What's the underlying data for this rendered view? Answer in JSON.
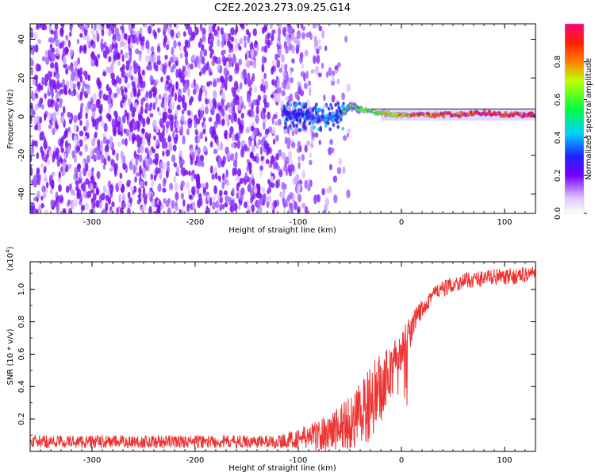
{
  "figure_title": "C2E2.2023.273.09.25.G14",
  "chart_data": [
    {
      "type": "heatmap",
      "title": "C2E2.2023.273.09.25.G14",
      "xlabel": "Height of straight line (km)",
      "ylabel": "Frequency (Hz)",
      "xlim": [
        -360,
        130
      ],
      "ylim": [
        -50,
        48
      ],
      "xticks": [
        -300,
        -200,
        -100,
        0,
        100
      ],
      "yticks": [
        -40,
        -20,
        0,
        20,
        40
      ],
      "colorbar": {
        "label": "Normalized spectral amplitude",
        "range": [
          0.0,
          1.0
        ],
        "ticks": [
          "0.0",
          "0.2",
          "0.4",
          "0.6",
          "0.8"
        ],
        "tick_values": [
          0.0,
          0.2,
          0.4,
          0.6,
          0.8
        ]
      },
      "signal_trace": {
        "description": "narrow carrier line near 0 Hz emerging above about -115 km",
        "x": [
          -115,
          -100,
          -90,
          -80,
          -70,
          -60,
          -50,
          -40,
          -30,
          -20,
          -10,
          0,
          20,
          40,
          60,
          80,
          100,
          130
        ],
        "frequency": [
          2,
          1,
          0,
          -1,
          -1,
          1,
          5,
          4,
          3,
          2,
          1,
          1,
          1,
          1,
          1,
          2,
          1,
          1
        ],
        "amplitude": [
          0.25,
          0.3,
          0.35,
          0.35,
          0.4,
          0.5,
          0.6,
          0.55,
          0.6,
          0.7,
          0.75,
          0.8,
          0.85,
          0.85,
          0.9,
          0.9,
          0.9,
          0.9
        ]
      },
      "noise_region_x": [
        -360,
        -60
      ]
    },
    {
      "type": "line",
      "xlabel": "Height of straight line (km)",
      "ylabel": "SNR (10 * v/v)",
      "multiplier_label": "(x10",
      "multiplier_exponent": "4",
      "multiplier_suffix": ")",
      "xlim": [
        -360,
        130
      ],
      "ylim": [
        0,
        1.17
      ],
      "xticks": [
        -300,
        -200,
        -100,
        0,
        100
      ],
      "yticks": [
        "0.2",
        "0.4",
        "0.6",
        "0.8",
        "1.0"
      ],
      "ytick_values": [
        0.2,
        0.4,
        0.6,
        0.8,
        1.0
      ],
      "series": [
        {
          "name": "SNR",
          "color": "#ee3333",
          "x": [
            -360,
            -340,
            -320,
            -300,
            -280,
            -260,
            -240,
            -220,
            -200,
            -180,
            -160,
            -140,
            -120,
            -110,
            -100,
            -90,
            -80,
            -70,
            -60,
            -50,
            -40,
            -35,
            -30,
            -25,
            -20,
            -15,
            -10,
            -5,
            0,
            5,
            10,
            15,
            20,
            25,
            30,
            40,
            50,
            60,
            70,
            80,
            90,
            100,
            110,
            120,
            130
          ],
          "values": [
            0.06,
            0.06,
            0.06,
            0.06,
            0.06,
            0.06,
            0.06,
            0.06,
            0.06,
            0.06,
            0.06,
            0.06,
            0.06,
            0.07,
            0.08,
            0.09,
            0.1,
            0.12,
            0.15,
            0.18,
            0.22,
            0.25,
            0.3,
            0.35,
            0.38,
            0.45,
            0.5,
            0.55,
            0.62,
            0.68,
            0.75,
            0.82,
            0.88,
            0.93,
            0.97,
            1.0,
            1.03,
            1.05,
            1.06,
            1.07,
            1.08,
            1.07,
            1.08,
            1.09,
            1.1
          ],
          "noise_amplitude": [
            0.04,
            0.04,
            0.04,
            0.04,
            0.04,
            0.04,
            0.04,
            0.04,
            0.04,
            0.04,
            0.04,
            0.04,
            0.04,
            0.05,
            0.06,
            0.08,
            0.1,
            0.12,
            0.15,
            0.18,
            0.2,
            0.22,
            0.22,
            0.22,
            0.22,
            0.2,
            0.18,
            0.15,
            0.12,
            0.12,
            0.1,
            0.08,
            0.07,
            0.06,
            0.06,
            0.05,
            0.05,
            0.05,
            0.05,
            0.05,
            0.05,
            0.05,
            0.05,
            0.05,
            0.05
          ]
        }
      ]
    }
  ]
}
